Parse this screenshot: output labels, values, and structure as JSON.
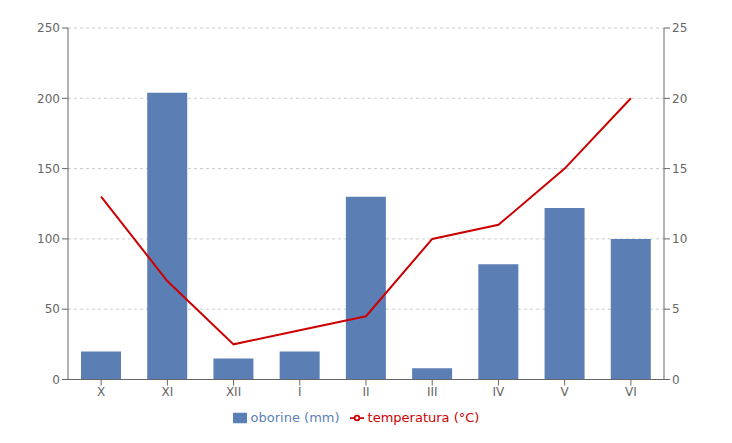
{
  "chart_data": {
    "type": "bar",
    "categories": [
      "X",
      "XI",
      "XII",
      "I",
      "II",
      "III",
      "IV",
      "V",
      "VI"
    ],
    "series": [
      {
        "name": "oborine (mm)",
        "type": "bar",
        "color": "#5b7fb5",
        "values": [
          20,
          204,
          15,
          20,
          130,
          8,
          82,
          122,
          100
        ]
      },
      {
        "name": "temperatura (°C)",
        "type": "line",
        "color": "#cc0000",
        "axis": "y2",
        "values": [
          13,
          7,
          2.5,
          3.5,
          4.5,
          10,
          11,
          15,
          20
        ]
      }
    ],
    "ylim": [
      0,
      250
    ],
    "yticks": [
      0,
      50,
      100,
      150,
      200,
      250
    ],
    "y2lim": [
      0,
      25
    ],
    "y2ticks": [
      0,
      5,
      10,
      15,
      20,
      25
    ],
    "grid": true,
    "legend": "bottom"
  }
}
